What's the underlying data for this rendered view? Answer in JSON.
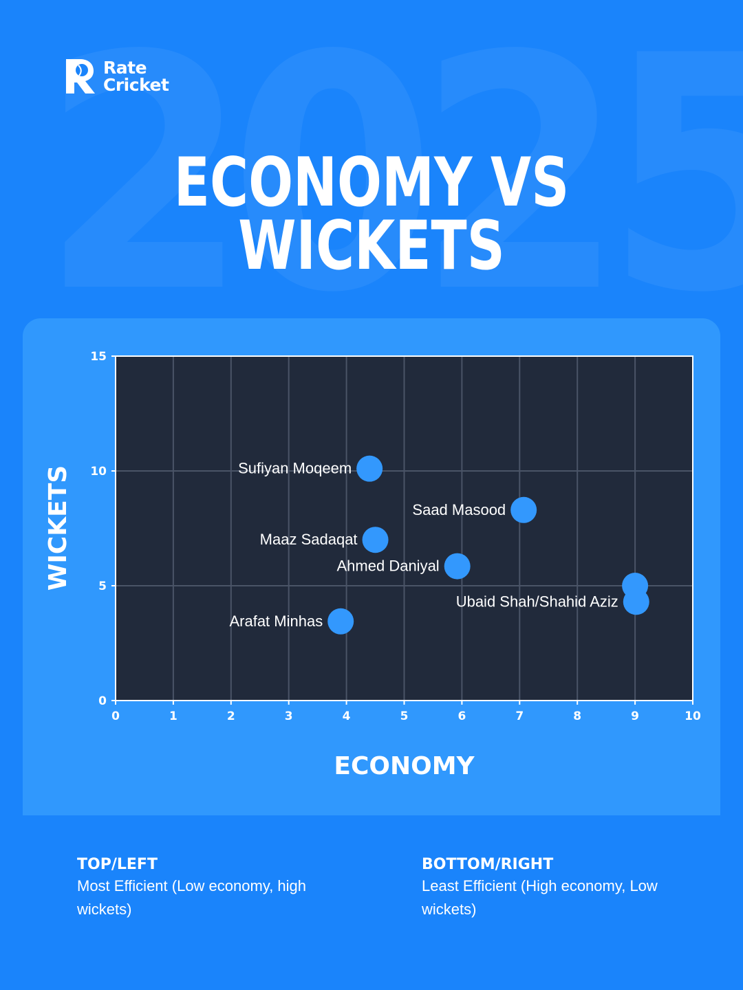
{
  "background_year": "2025",
  "brand": {
    "line1": "Rate",
    "line2": "Cricket"
  },
  "title": {
    "line1": "ECONOMY VS",
    "line2": "WICKETS"
  },
  "colors": {
    "background": "#1a84fb",
    "panel": "#3098fd",
    "plot_area": "#212a3b",
    "grid": "#4a5467",
    "point": "#3398fd",
    "text": "#ffffff"
  },
  "chart_data": {
    "type": "scatter",
    "xlabel": "ECONOMY",
    "ylabel": "WICKETS",
    "xlim": [
      0,
      10
    ],
    "ylim": [
      0,
      15
    ],
    "x_ticks": [
      "0",
      "1",
      "2",
      "3",
      "4",
      "5",
      "6",
      "7",
      "8",
      "9",
      "10"
    ],
    "y_ticks": [
      "0",
      "5",
      "10",
      "15"
    ],
    "grid": true,
    "points": [
      {
        "label": "Sufiyan Moqeem",
        "x": 4.4,
        "y": 10.1
      },
      {
        "label": "Saad Masood",
        "x": 7.07,
        "y": 8.3
      },
      {
        "label": "Maaz Sadaqat",
        "x": 4.5,
        "y": 7.0
      },
      {
        "label": "Ahmed Daniyal",
        "x": 5.92,
        "y": 5.85
      },
      {
        "label": "",
        "x": 9.0,
        "y": 5.0
      },
      {
        "label": "Ubaid Shah/Shahid Aziz",
        "x": 9.02,
        "y": 4.3
      },
      {
        "label": "Arafat Minhas",
        "x": 3.9,
        "y": 3.45
      }
    ]
  },
  "legend": {
    "left": {
      "heading": "TOP/LEFT",
      "text": "Most Efficient (Low economy, high wickets)"
    },
    "right": {
      "heading": "BOTTOM/RIGHT",
      "text": "Least Efficient (High economy, Low wickets)"
    }
  }
}
